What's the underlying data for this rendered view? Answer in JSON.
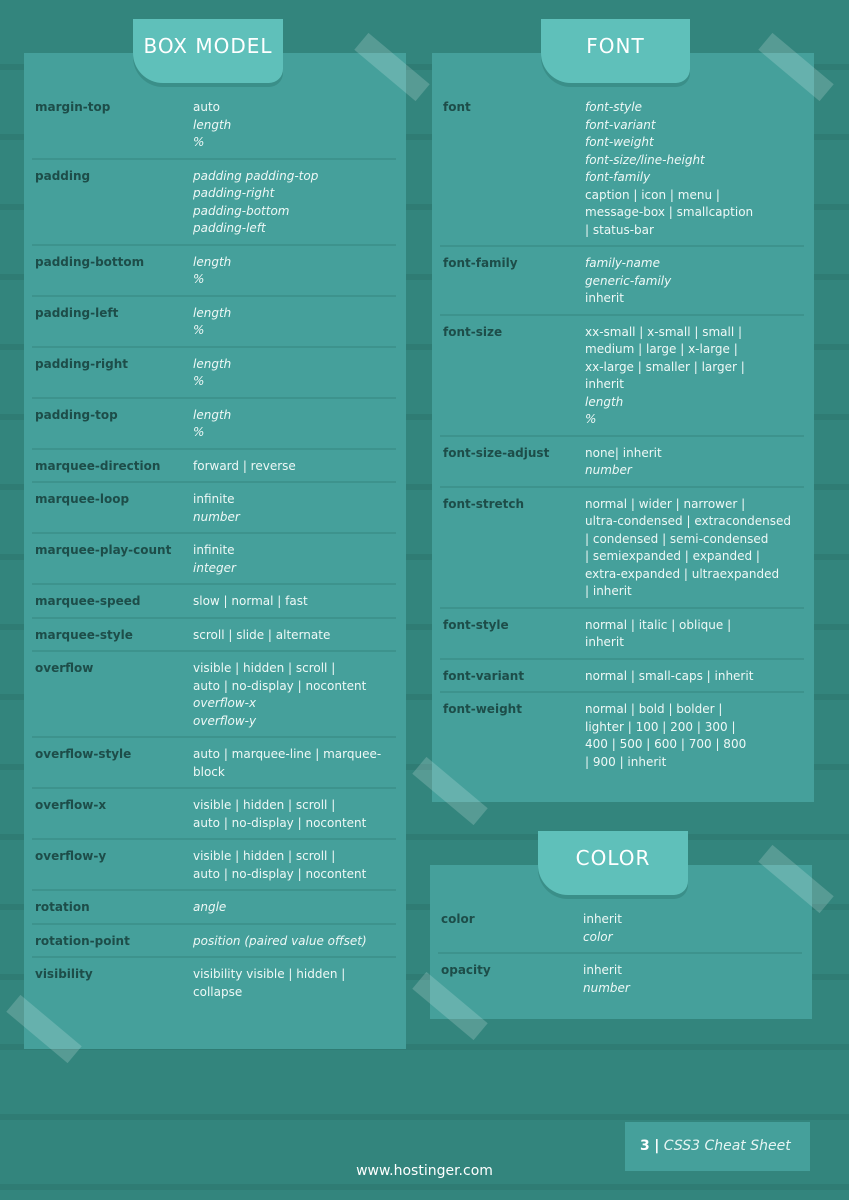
{
  "colors": {
    "background": "#33857d",
    "panel": "#45a09b",
    "tab": "#5fc0ba",
    "property": "#1d4d49"
  },
  "sections": {
    "box": {
      "title": "BOX MODEL",
      "rows": [
        {
          "name": "margin-top",
          "lines": [
            {
              "t": "auto"
            },
            {
              "t": "length",
              "i": true
            },
            {
              "t": "%",
              "i": true
            }
          ]
        },
        {
          "name": "padding",
          "lines": [
            {
              "t": "padding padding-top",
              "i": true
            },
            {
              "t": "padding-right",
              "i": true
            },
            {
              "t": "padding-bottom",
              "i": true
            },
            {
              "t": "padding-left",
              "i": true
            }
          ]
        },
        {
          "name": "padding-bottom",
          "lines": [
            {
              "t": "length",
              "i": true
            },
            {
              "t": "%",
              "i": true
            }
          ]
        },
        {
          "name": "padding-left",
          "lines": [
            {
              "t": "length",
              "i": true
            },
            {
              "t": "%",
              "i": true
            }
          ]
        },
        {
          "name": "padding-right",
          "lines": [
            {
              "t": "length",
              "i": true
            },
            {
              "t": "%",
              "i": true
            }
          ]
        },
        {
          "name": "padding-top",
          "lines": [
            {
              "t": "length",
              "i": true
            },
            {
              "t": "%",
              "i": true
            }
          ]
        },
        {
          "name": "marquee-direction",
          "lines": [
            {
              "t": "forward | reverse"
            }
          ]
        },
        {
          "name": "marquee-loop",
          "lines": [
            {
              "t": "infinite"
            },
            {
              "t": "number",
              "i": true
            }
          ]
        },
        {
          "name": "marquee-play-count",
          "lines": [
            {
              "t": "infinite"
            },
            {
              "t": "integer",
              "i": true
            }
          ]
        },
        {
          "name": "marquee-speed",
          "lines": [
            {
              "t": "slow | normal | fast"
            }
          ]
        },
        {
          "name": "marquee-style",
          "lines": [
            {
              "t": "scroll | slide | alternate"
            }
          ]
        },
        {
          "name": "overflow",
          "lines": [
            {
              "t": "visible | hidden | scroll |"
            },
            {
              "t": "auto | no-display | nocontent"
            },
            {
              "t": "overflow-x",
              "i": true
            },
            {
              "t": "overflow-y",
              "i": true
            }
          ]
        },
        {
          "name": "overflow-style",
          "lines": [
            {
              "t": "auto | marquee-line | marquee-"
            },
            {
              "t": "block"
            }
          ]
        },
        {
          "name": "overflow-x",
          "lines": [
            {
              "t": "visible | hidden | scroll |"
            },
            {
              "t": "auto | no-display | nocontent"
            }
          ]
        },
        {
          "name": "overflow-y",
          "lines": [
            {
              "t": "visible | hidden | scroll |"
            },
            {
              "t": "auto | no-display | nocontent"
            }
          ]
        },
        {
          "name": "rotation",
          "lines": [
            {
              "t": "angle",
              "i": true
            }
          ]
        },
        {
          "name": "rotation-point",
          "lines": [
            {
              "t": "position (paired value offset)",
              "i": true
            }
          ]
        },
        {
          "name": "visibility",
          "lines": [
            {
              "t": "visibility visible | hidden |"
            },
            {
              "t": "collapse"
            }
          ]
        }
      ]
    },
    "font": {
      "title": "FONT",
      "rows": [
        {
          "name": "font",
          "lines": [
            {
              "t": "font-style",
              "i": true
            },
            {
              "t": "font-variant",
              "i": true
            },
            {
              "t": "font-weight",
              "i": true
            },
            {
              "t": "font-size/line-height",
              "i": true
            },
            {
              "t": "font-family",
              "i": true
            },
            {
              "t": "caption | icon | menu |"
            },
            {
              "t": "message-box | smallcaption"
            },
            {
              "t": "| status-bar"
            }
          ]
        },
        {
          "name": "font-family",
          "lines": [
            {
              "t": "family-name",
              "i": true
            },
            {
              "t": "generic-family",
              "i": true
            },
            {
              "t": "inherit"
            }
          ]
        },
        {
          "name": "font-size",
          "lines": [
            {
              "t": "xx-small | x-small | small |"
            },
            {
              "t": "medium | large | x-large |"
            },
            {
              "t": "xx-large | smaller | larger |"
            },
            {
              "t": "inherit"
            },
            {
              "t": "length",
              "i": true
            },
            {
              "t": "%",
              "i": true
            }
          ]
        },
        {
          "name": "font-size-adjust",
          "lines": [
            {
              "t": "none| inherit"
            },
            {
              "t": "number",
              "i": true
            }
          ]
        },
        {
          "name": "font-stretch",
          "lines": [
            {
              "t": "normal | wider | narrower |"
            },
            {
              "t": "ultra-condensed | extracondensed"
            },
            {
              "t": "| condensed | semi-condensed"
            },
            {
              "t": "| semiexpanded | expanded |"
            },
            {
              "t": "extra-expanded | ultraexpanded"
            },
            {
              "t": "| inherit"
            }
          ]
        },
        {
          "name": "font-style",
          "lines": [
            {
              "t": "normal | italic | oblique |"
            },
            {
              "t": "inherit"
            }
          ]
        },
        {
          "name": "font-variant",
          "lines": [
            {
              "t": "normal | small-caps | inherit"
            }
          ]
        },
        {
          "name": "font-weight",
          "lines": [
            {
              "t": "normal | bold | bolder |"
            },
            {
              "t": "lighter | 100 | 200 | 300 |"
            },
            {
              "t": "400 | 500 | 600 | 700 | 800"
            },
            {
              "t": "| 900 | inherit"
            }
          ]
        }
      ]
    },
    "color": {
      "title": "COLOR",
      "rows": [
        {
          "name": "color",
          "lines": [
            {
              "t": "inherit"
            },
            {
              "t": "color",
              "i": true
            }
          ]
        },
        {
          "name": "opacity",
          "lines": [
            {
              "t": "inherit"
            },
            {
              "t": "number",
              "i": true
            }
          ]
        }
      ]
    }
  },
  "footer": {
    "url": "www.hostinger.com",
    "page_number": "3",
    "separator": "|",
    "doc_title": "CSS3 Cheat Sheet"
  }
}
